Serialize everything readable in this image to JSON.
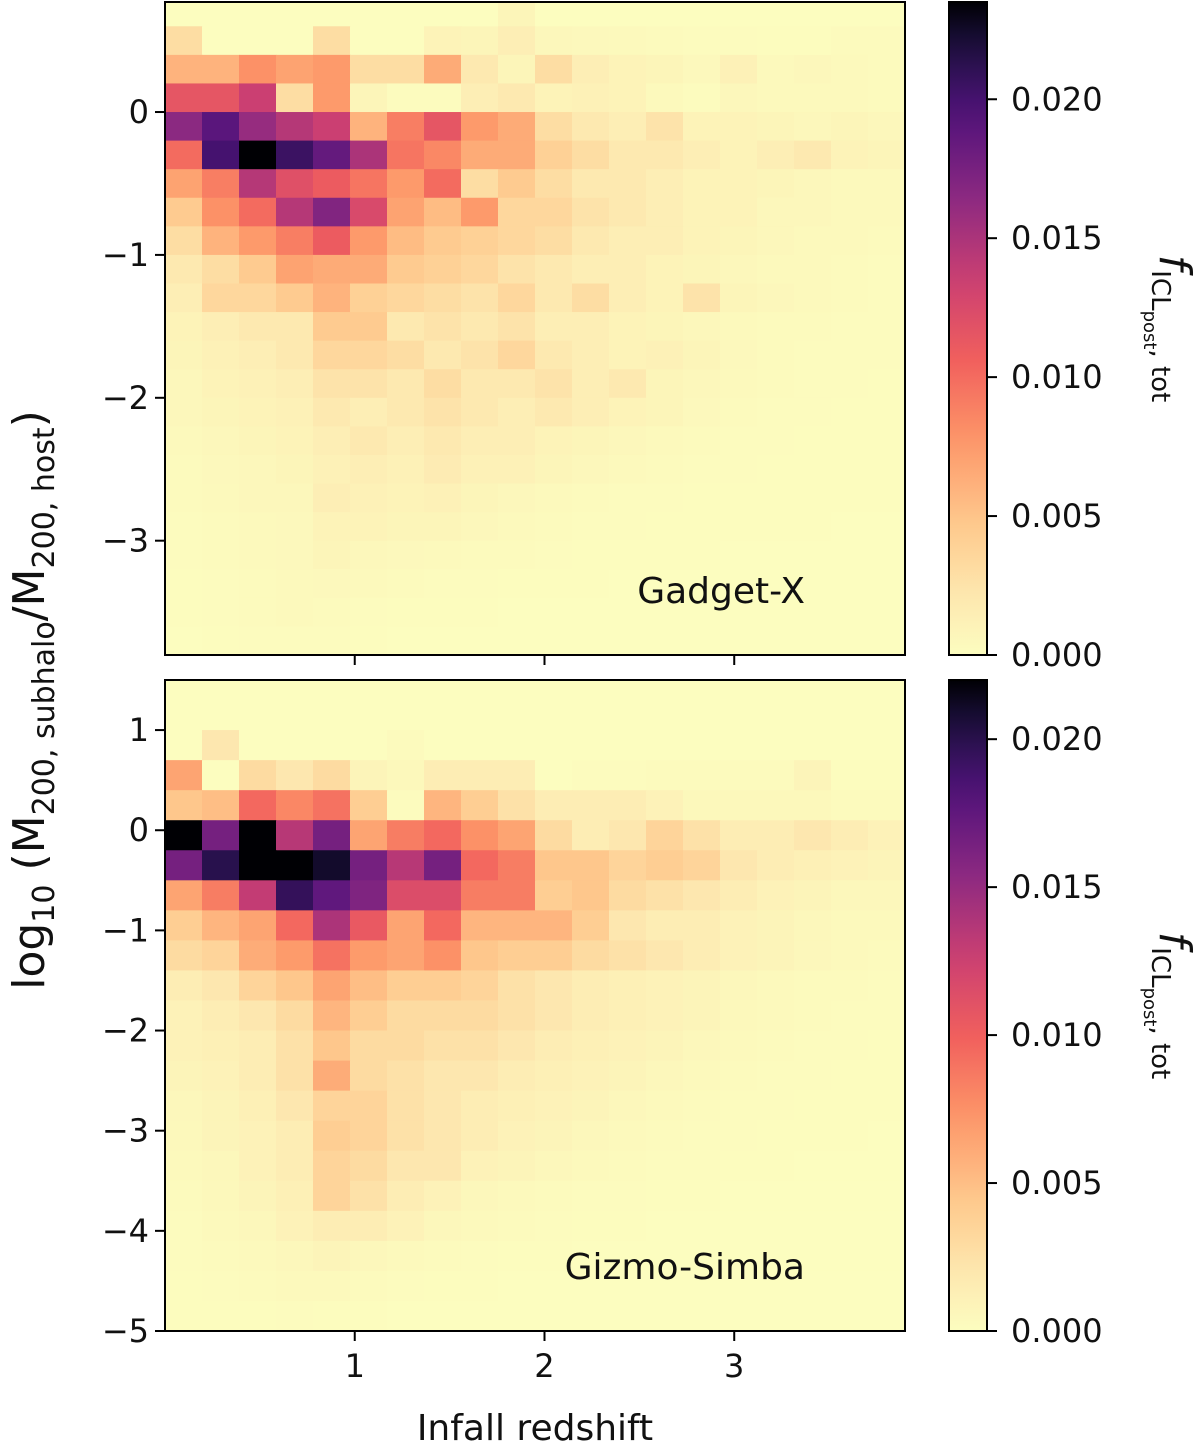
{
  "chart_data": [
    {
      "type": "heatmap",
      "panel": "top",
      "label": "Gadget-X",
      "x_range": [
        0.0,
        3.9
      ],
      "y_range": [
        -3.8,
        0.77
      ],
      "x_bin_edges": [
        0.0,
        0.195,
        0.39,
        0.585,
        0.78,
        0.975,
        1.17,
        1.365,
        1.56,
        1.755,
        1.95,
        2.145,
        2.34,
        2.535,
        2.73,
        2.925,
        3.12,
        3.315,
        3.51,
        3.705,
        3.9
      ],
      "y_bin_edges": [
        -3.8,
        -3.6,
        -3.4,
        -3.2,
        -3.0,
        -2.8,
        -2.6,
        -2.4,
        -2.2,
        -2.0,
        -1.8,
        -1.6,
        -1.4,
        -1.2,
        -1.0,
        -0.8,
        -0.6,
        -0.4,
        -0.2,
        0.0,
        0.2,
        0.4,
        0.6,
        0.77
      ],
      "x_ticks": [
        1,
        2,
        3
      ],
      "x_tick_labels": [
        "",
        "",
        ""
      ],
      "y_ticks": [
        0,
        -1,
        -2,
        -3
      ],
      "y_tick_labels": [
        "0",
        "−1",
        "−2",
        "−3"
      ],
      "colorbar": {
        "min": 0.0,
        "max": 0.0235,
        "ticks": [
          0.0,
          0.005,
          0.01,
          0.015,
          0.02
        ],
        "tick_labels": [
          "0.000",
          "0.005",
          "0.010",
          "0.015",
          "0.020"
        ],
        "colormap": "magma_r",
        "label": "f_ICL_post, tot"
      },
      "values_rows_top_to_bottom": [
        [
          0.0,
          0.0,
          0.0,
          0.0,
          0.0,
          0.0,
          0.0,
          0.0,
          0.0,
          0.0008,
          0.0,
          0.0,
          0.0,
          0.0,
          0.0,
          0.0,
          0.0,
          0.0,
          0.0,
          0.0
        ],
        [
          0.003,
          0.0,
          0.0,
          0.0,
          0.003,
          0.0,
          0.0,
          0.001,
          0.0008,
          0.0015,
          0.0006,
          0.0005,
          0.0004,
          0.0003,
          0.0002,
          0.0002,
          0.0001,
          0.0001,
          0.0003,
          0.0003
        ],
        [
          0.006,
          0.006,
          0.008,
          0.007,
          0.0075,
          0.003,
          0.003,
          0.0065,
          0.002,
          0.0008,
          0.003,
          0.0015,
          0.001,
          0.0008,
          0.0005,
          0.0012,
          0.0004,
          0.0006,
          0.0004,
          0.0003
        ],
        [
          0.0115,
          0.0115,
          0.0135,
          0.003,
          0.0075,
          0.0008,
          0.0002,
          0.0002,
          0.0015,
          0.002,
          0.001,
          0.0012,
          0.001,
          0.0004,
          0.0002,
          0.0006,
          0.0004,
          0.0004,
          0.0004,
          0.0003
        ],
        [
          0.0165,
          0.019,
          0.016,
          0.0145,
          0.0135,
          0.006,
          0.009,
          0.0115,
          0.0075,
          0.0065,
          0.003,
          0.002,
          0.0015,
          0.0025,
          0.001,
          0.001,
          0.0008,
          0.0006,
          0.0008,
          0.0006
        ],
        [
          0.01,
          0.02,
          0.0235,
          0.0205,
          0.0185,
          0.015,
          0.0095,
          0.0085,
          0.0065,
          0.0065,
          0.004,
          0.003,
          0.002,
          0.002,
          0.0015,
          0.001,
          0.0015,
          0.002,
          0.001,
          0.0008
        ],
        [
          0.007,
          0.009,
          0.0145,
          0.012,
          0.011,
          0.0095,
          0.0075,
          0.01,
          0.003,
          0.0045,
          0.003,
          0.002,
          0.002,
          0.0015,
          0.001,
          0.001,
          0.0008,
          0.0006,
          0.0004,
          0.0004
        ],
        [
          0.0045,
          0.008,
          0.01,
          0.0145,
          0.017,
          0.0125,
          0.007,
          0.0055,
          0.0075,
          0.0035,
          0.0035,
          0.0025,
          0.002,
          0.0015,
          0.001,
          0.001,
          0.0006,
          0.0006,
          0.0004,
          0.0004
        ],
        [
          0.003,
          0.006,
          0.0075,
          0.009,
          0.011,
          0.0075,
          0.0055,
          0.0045,
          0.004,
          0.0035,
          0.003,
          0.002,
          0.0015,
          0.0015,
          0.001,
          0.0008,
          0.0006,
          0.0004,
          0.0004,
          0.0003
        ],
        [
          0.002,
          0.003,
          0.0045,
          0.007,
          0.0065,
          0.0065,
          0.0045,
          0.004,
          0.0035,
          0.0025,
          0.002,
          0.0015,
          0.0015,
          0.001,
          0.0008,
          0.0006,
          0.0004,
          0.0004,
          0.0003,
          0.0002
        ],
        [
          0.0015,
          0.0035,
          0.0035,
          0.0045,
          0.006,
          0.004,
          0.0035,
          0.003,
          0.0025,
          0.0035,
          0.002,
          0.003,
          0.0015,
          0.001,
          0.0025,
          0.0008,
          0.0006,
          0.0004,
          0.0003,
          0.0002
        ],
        [
          0.001,
          0.0015,
          0.002,
          0.002,
          0.0045,
          0.0045,
          0.002,
          0.0025,
          0.002,
          0.0025,
          0.0015,
          0.0015,
          0.001,
          0.0008,
          0.0006,
          0.0004,
          0.0003,
          0.0003,
          0.0002,
          0.0002
        ],
        [
          0.0008,
          0.0012,
          0.0015,
          0.002,
          0.0035,
          0.0035,
          0.003,
          0.002,
          0.0025,
          0.0035,
          0.002,
          0.0015,
          0.001,
          0.0012,
          0.0008,
          0.0005,
          0.0003,
          0.0002,
          0.0002,
          0.0002
        ],
        [
          0.0006,
          0.001,
          0.0012,
          0.0015,
          0.0025,
          0.0025,
          0.002,
          0.003,
          0.002,
          0.002,
          0.0025,
          0.0015,
          0.002,
          0.0008,
          0.0006,
          0.0004,
          0.0003,
          0.0002,
          0.0002,
          0.0001
        ],
        [
          0.0006,
          0.0008,
          0.001,
          0.0012,
          0.002,
          0.0015,
          0.002,
          0.0025,
          0.002,
          0.0015,
          0.002,
          0.0015,
          0.001,
          0.0008,
          0.0005,
          0.0003,
          0.0002,
          0.0002,
          0.0001,
          0.0001
        ],
        [
          0.0004,
          0.0006,
          0.0008,
          0.001,
          0.0015,
          0.002,
          0.0015,
          0.002,
          0.0015,
          0.0015,
          0.001,
          0.0008,
          0.0006,
          0.0004,
          0.0003,
          0.0002,
          0.0002,
          0.0001,
          0.0001,
          0.0001
        ],
        [
          0.0003,
          0.0005,
          0.0006,
          0.0008,
          0.0012,
          0.0015,
          0.0012,
          0.0018,
          0.0012,
          0.0012,
          0.0008,
          0.0006,
          0.0004,
          0.0003,
          0.0002,
          0.0002,
          0.0001,
          0.0001,
          0.0001,
          0.0001
        ],
        [
          0.0003,
          0.0004,
          0.0006,
          0.0006,
          0.0015,
          0.0012,
          0.001,
          0.0012,
          0.0008,
          0.0006,
          0.0004,
          0.0003,
          0.0002,
          0.0002,
          0.0001,
          0.0001,
          0.0001,
          0.0001,
          0.0001,
          0.0001
        ],
        [
          0.0002,
          0.0003,
          0.0004,
          0.0005,
          0.001,
          0.001,
          0.0008,
          0.0008,
          0.0006,
          0.0004,
          0.0003,
          0.0002,
          0.0002,
          0.0001,
          0.0001,
          0.0001,
          0.0001,
          0.0001,
          0.0,
          0.0
        ],
        [
          0.0002,
          0.0003,
          0.0004,
          0.0005,
          0.0008,
          0.0006,
          0.0005,
          0.0004,
          0.0003,
          0.0003,
          0.0002,
          0.0001,
          0.0001,
          0.0001,
          0.0001,
          0.0,
          0.0,
          0.0,
          0.0,
          0.0
        ],
        [
          0.0001,
          0.0002,
          0.0003,
          0.0004,
          0.0005,
          0.0004,
          0.0003,
          0.0002,
          0.0002,
          0.0001,
          0.0001,
          0.0001,
          0.0,
          0.0,
          0.0,
          0.0,
          0.0,
          0.0,
          0.0,
          0.0
        ],
        [
          0.0001,
          0.0002,
          0.0003,
          0.0004,
          0.0003,
          0.0002,
          0.0001,
          0.0001,
          0.0001,
          0.0,
          0.0,
          0.0,
          0.0,
          0.0,
          0.0,
          0.0,
          0.0,
          0.0,
          0.0,
          0.0
        ],
        [
          0.0,
          0.0001,
          0.0002,
          0.0002,
          0.0002,
          0.0001,
          0.0,
          0.0,
          0.0,
          0.0,
          0.0,
          0.0,
          0.0,
          0.0,
          0.0,
          0.0,
          0.0,
          0.0,
          0.0,
          0.0
        ]
      ]
    },
    {
      "type": "heatmap",
      "panel": "bottom",
      "label": "Gizmo-Simba",
      "x_range": [
        0.0,
        3.9
      ],
      "y_range": [
        -5.0,
        1.5
      ],
      "x_bin_edges": [
        0.0,
        0.195,
        0.39,
        0.585,
        0.78,
        0.975,
        1.17,
        1.365,
        1.56,
        1.755,
        1.95,
        2.145,
        2.34,
        2.535,
        2.73,
        2.925,
        3.12,
        3.315,
        3.51,
        3.705,
        3.9
      ],
      "y_bin_edges": [
        -5.0,
        -4.7,
        -4.4,
        -4.1,
        -3.8,
        -3.5,
        -3.2,
        -2.9,
        -2.6,
        -2.3,
        -2.0,
        -1.7,
        -1.4,
        -1.1,
        -0.8,
        -0.5,
        -0.2,
        0.1,
        0.4,
        0.7,
        1.0,
        1.5
      ],
      "x_ticks": [
        1,
        2,
        3
      ],
      "x_tick_labels": [
        "1",
        "2",
        "3"
      ],
      "y_ticks": [
        1,
        0,
        -1,
        -2,
        -3,
        -4,
        -5
      ],
      "y_tick_labels": [
        "1",
        "0",
        "−1",
        "−2",
        "−3",
        "−4",
        "−5"
      ],
      "colorbar": {
        "min": 0.0,
        "max": 0.022,
        "ticks": [
          0.0,
          0.005,
          0.01,
          0.015,
          0.02
        ],
        "tick_labels": [
          "0.000",
          "0.005",
          "0.010",
          "0.015",
          "0.020"
        ],
        "colormap": "magma_r",
        "label": "f_ICL_post, tot"
      },
      "values_rows_top_to_bottom": [
        [
          0.0,
          0.0,
          0.0,
          0.0,
          0.0,
          0.0,
          0.0,
          0.0,
          0.0,
          0.0,
          0.0,
          0.0,
          0.0,
          0.0,
          0.0,
          0.0,
          0.0,
          0.0,
          0.0,
          0.0
        ],
        [
          0.0,
          0.002,
          0.0,
          0.0,
          0.0,
          0.0,
          0.0003,
          0.0,
          0.0,
          0.0,
          0.0,
          0.0,
          0.0,
          0.0,
          0.0,
          0.0,
          0.0,
          0.0,
          0.0,
          0.0
        ],
        [
          0.0065,
          0.0,
          0.003,
          0.002,
          0.003,
          0.0008,
          0.0005,
          0.0015,
          0.0015,
          0.0015,
          0.0,
          0.0002,
          0.0002,
          0.0003,
          0.0003,
          0.0003,
          0.0003,
          0.0008,
          0.0001,
          0.0001
        ],
        [
          0.0045,
          0.005,
          0.0095,
          0.008,
          0.009,
          0.004,
          0.0002,
          0.0055,
          0.004,
          0.0025,
          0.0015,
          0.0015,
          0.0015,
          0.001,
          0.0005,
          0.0005,
          0.0005,
          0.0005,
          0.0003,
          0.0003
        ],
        [
          0.022,
          0.0165,
          0.022,
          0.0135,
          0.0165,
          0.0065,
          0.0085,
          0.0095,
          0.0075,
          0.0065,
          0.003,
          0.0015,
          0.002,
          0.0035,
          0.0025,
          0.0015,
          0.0015,
          0.002,
          0.0015,
          0.001
        ],
        [
          0.0165,
          0.02,
          0.022,
          0.022,
          0.021,
          0.0165,
          0.0135,
          0.0165,
          0.0095,
          0.0085,
          0.0045,
          0.0045,
          0.0035,
          0.004,
          0.0035,
          0.002,
          0.0015,
          0.0012,
          0.001,
          0.0008
        ],
        [
          0.0065,
          0.0085,
          0.013,
          0.0195,
          0.0175,
          0.016,
          0.0115,
          0.0115,
          0.0085,
          0.0085,
          0.004,
          0.0045,
          0.003,
          0.0025,
          0.002,
          0.0015,
          0.001,
          0.0008,
          0.0006,
          0.0006
        ],
        [
          0.004,
          0.0055,
          0.0065,
          0.0095,
          0.014,
          0.0105,
          0.0065,
          0.0095,
          0.0055,
          0.0055,
          0.0055,
          0.004,
          0.002,
          0.0015,
          0.0015,
          0.001,
          0.0008,
          0.0006,
          0.0004,
          0.0004
        ],
        [
          0.003,
          0.0035,
          0.006,
          0.007,
          0.009,
          0.007,
          0.0065,
          0.0075,
          0.0045,
          0.004,
          0.004,
          0.003,
          0.0025,
          0.002,
          0.0015,
          0.001,
          0.0008,
          0.0006,
          0.0004,
          0.0003
        ],
        [
          0.0015,
          0.002,
          0.0035,
          0.0045,
          0.0065,
          0.005,
          0.004,
          0.004,
          0.0035,
          0.0025,
          0.002,
          0.0015,
          0.0012,
          0.001,
          0.0008,
          0.0006,
          0.0004,
          0.0003,
          0.0003,
          0.0002
        ],
        [
          0.001,
          0.0015,
          0.002,
          0.003,
          0.0055,
          0.004,
          0.003,
          0.003,
          0.003,
          0.0025,
          0.002,
          0.0015,
          0.0012,
          0.001,
          0.0008,
          0.0005,
          0.0004,
          0.0003,
          0.0002,
          0.0002
        ],
        [
          0.001,
          0.0012,
          0.0015,
          0.0025,
          0.0045,
          0.003,
          0.003,
          0.0025,
          0.0025,
          0.002,
          0.0015,
          0.0012,
          0.001,
          0.0008,
          0.0006,
          0.0004,
          0.0003,
          0.0002,
          0.0002,
          0.0001
        ],
        [
          0.0008,
          0.001,
          0.0015,
          0.0025,
          0.006,
          0.003,
          0.0025,
          0.002,
          0.002,
          0.0015,
          0.0012,
          0.001,
          0.0008,
          0.0006,
          0.0004,
          0.0003,
          0.0002,
          0.0002,
          0.0001,
          0.0001
        ],
        [
          0.0006,
          0.0008,
          0.0012,
          0.002,
          0.0035,
          0.0035,
          0.0025,
          0.002,
          0.0015,
          0.0012,
          0.001,
          0.0008,
          0.0006,
          0.0004,
          0.0003,
          0.0002,
          0.0002,
          0.0001,
          0.0001,
          0.0001
        ],
        [
          0.0005,
          0.0008,
          0.001,
          0.0015,
          0.004,
          0.0035,
          0.0025,
          0.002,
          0.0015,
          0.001,
          0.0008,
          0.0006,
          0.0004,
          0.0003,
          0.0002,
          0.0002,
          0.0001,
          0.0001,
          0.0001,
          0.0
        ],
        [
          0.0004,
          0.0006,
          0.001,
          0.0015,
          0.0035,
          0.003,
          0.002,
          0.002,
          0.001,
          0.0008,
          0.0006,
          0.0004,
          0.0003,
          0.0002,
          0.0002,
          0.0001,
          0.0001,
          0.0,
          0.0,
          0.0
        ],
        [
          0.0003,
          0.0005,
          0.0008,
          0.0012,
          0.0035,
          0.0025,
          0.0015,
          0.001,
          0.0006,
          0.0004,
          0.0003,
          0.0002,
          0.0002,
          0.0001,
          0.0001,
          0.0,
          0.0,
          0.0,
          0.0,
          0.0
        ],
        [
          0.0002,
          0.0004,
          0.0006,
          0.001,
          0.0015,
          0.0015,
          0.001,
          0.0006,
          0.0004,
          0.0003,
          0.0002,
          0.0001,
          0.0001,
          0.0,
          0.0,
          0.0,
          0.0,
          0.0,
          0.0,
          0.0
        ],
        [
          0.0002,
          0.0003,
          0.0004,
          0.0006,
          0.0008,
          0.0006,
          0.0004,
          0.0003,
          0.0002,
          0.0001,
          0.0001,
          0.0,
          0.0,
          0.0,
          0.0,
          0.0,
          0.0,
          0.0,
          0.0,
          0.0
        ],
        [
          0.0001,
          0.0002,
          0.0003,
          0.0004,
          0.0004,
          0.0003,
          0.0002,
          0.0001,
          0.0001,
          0.0,
          0.0,
          0.0,
          0.0,
          0.0,
          0.0,
          0.0,
          0.0,
          0.0,
          0.0,
          0.0
        ],
        [
          0.0001,
          0.0001,
          0.0001,
          0.0002,
          0.0001,
          0.0001,
          0.0,
          0.0,
          0.0,
          0.0,
          0.0,
          0.0,
          0.0,
          0.0,
          0.0,
          0.0,
          0.0,
          0.0,
          0.0,
          0.0
        ]
      ]
    }
  ],
  "axes": {
    "xlabel": "Infall redshift",
    "ylabel_prefix": "log",
    "ylabel_base": "10",
    "ylabel_open": " (M",
    "ylabel_sub1": "200, subhalo",
    "ylabel_mid": "/M",
    "ylabel_sub2": "200, host",
    "ylabel_close": ")",
    "cbar_f": "f",
    "cbar_sub": "ICL",
    "cbar_subsub": "post",
    "cbar_tail": ", tot"
  }
}
